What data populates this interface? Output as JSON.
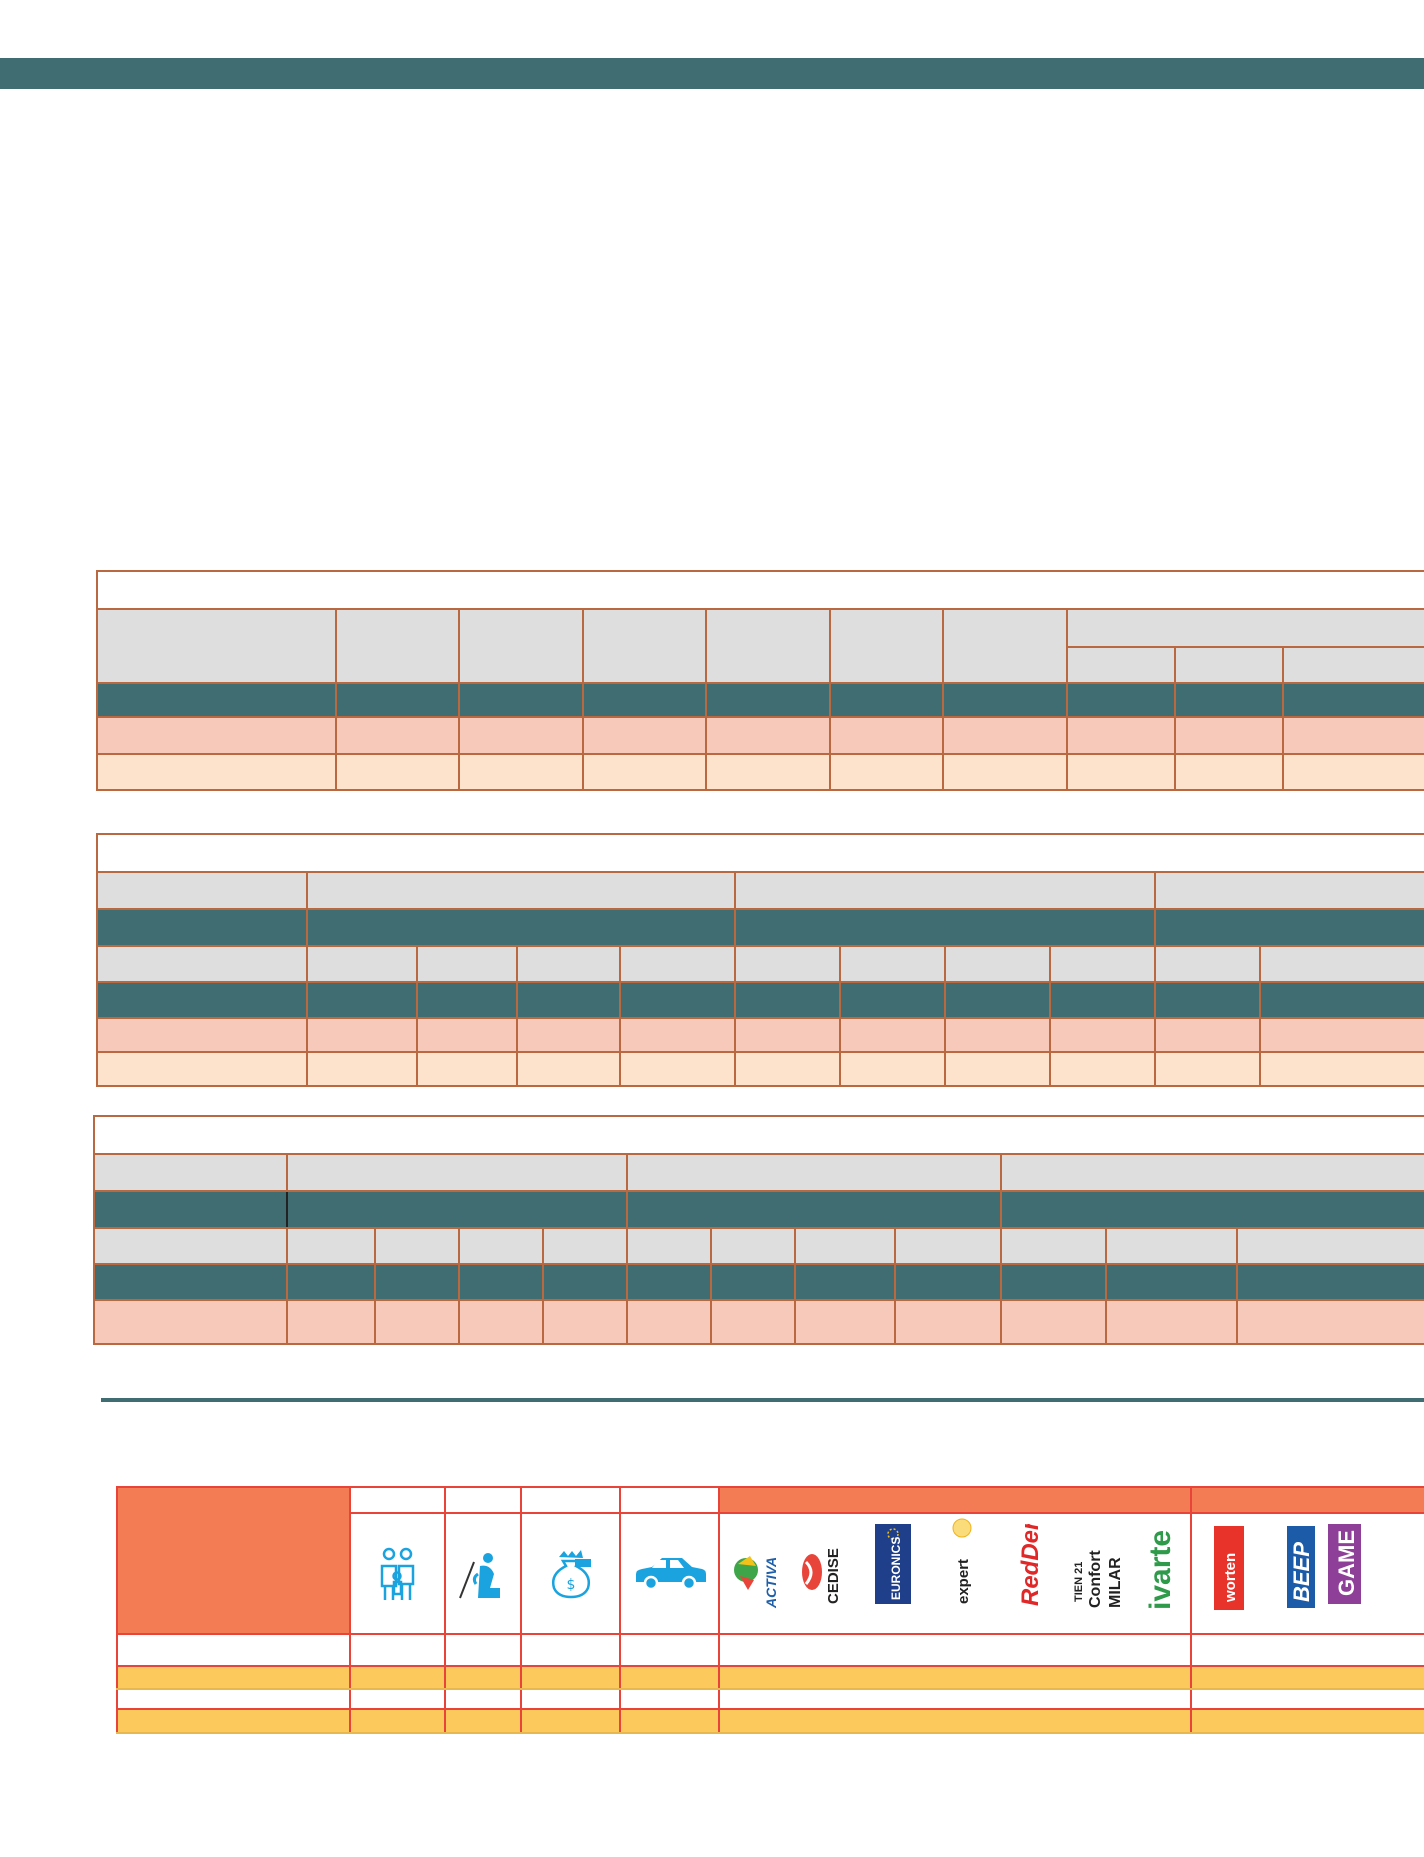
{
  "colors": {
    "header_bar": "#406d71",
    "table_border": "#b9683f",
    "header_gray": "#dedede",
    "row_dark": "#406d71",
    "row_pink": "#f7c9ba",
    "row_peach": "#fde3cb",
    "channel_orange": "#f47c55",
    "channel_yellow": "#fbc95c",
    "channel_border": "#e8443a",
    "icon_blue": "#1aa3df"
  },
  "icons": [
    "family-icon",
    "person-at-desk-icon",
    "money-bag-icon",
    "car-icon"
  ],
  "logos": {
    "independent": [
      "ACTIVA",
      "CEDISE",
      "EURONICS",
      "expert",
      "RedDer",
      "TIEN 21",
      "Confort",
      "MILAR",
      "ivarte"
    ],
    "chains": [
      "worten",
      "BEEP",
      "GAME"
    ]
  }
}
